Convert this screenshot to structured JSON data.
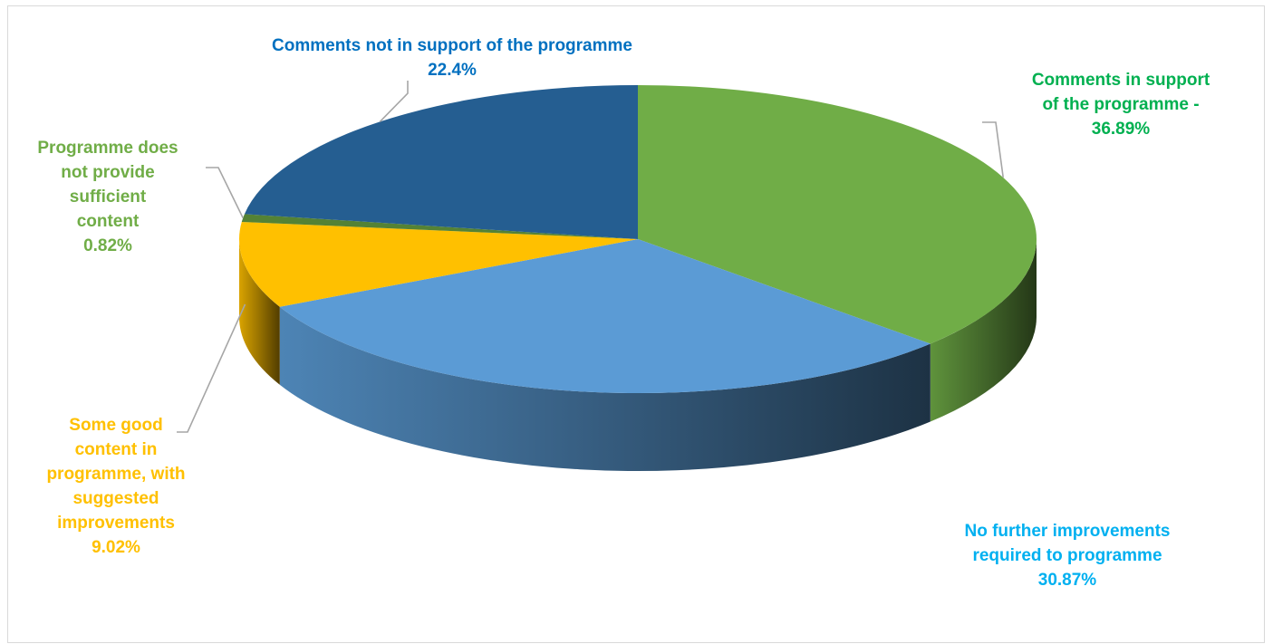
{
  "chart_data": {
    "type": "pie",
    "style": "3d",
    "title": "",
    "slices": [
      {
        "key": "support",
        "label_lines": [
          "Comments in support",
          "of the programme -",
          "36.89%"
        ],
        "value": 36.89,
        "color": "#70ad47",
        "label_color": "#00b050"
      },
      {
        "key": "nofurther",
        "label_lines": [
          "No further improvements",
          "required to programme",
          "30.87%"
        ],
        "value": 30.87,
        "color": "#5b9bd5",
        "label_color": "#00b0f0"
      },
      {
        "key": "somegood",
        "label_lines": [
          "Some good",
          "content in",
          "programme, with",
          "suggested",
          "improvements",
          "9.02%"
        ],
        "value": 9.02,
        "color": "#ffc000",
        "label_color": "#ffc000"
      },
      {
        "key": "insufficient",
        "label_lines": [
          "Programme does",
          "not provide",
          "sufficient",
          "content",
          "0.82%"
        ],
        "value": 0.82,
        "color": "#548235",
        "label_color": "#70ad47"
      },
      {
        "key": "notsupport",
        "label_lines": [
          "Comments not in support of the programme",
          "22.4%"
        ],
        "value": 22.4,
        "color": "#255e91",
        "label_color": "#0070c0"
      }
    ],
    "legend": "none"
  }
}
